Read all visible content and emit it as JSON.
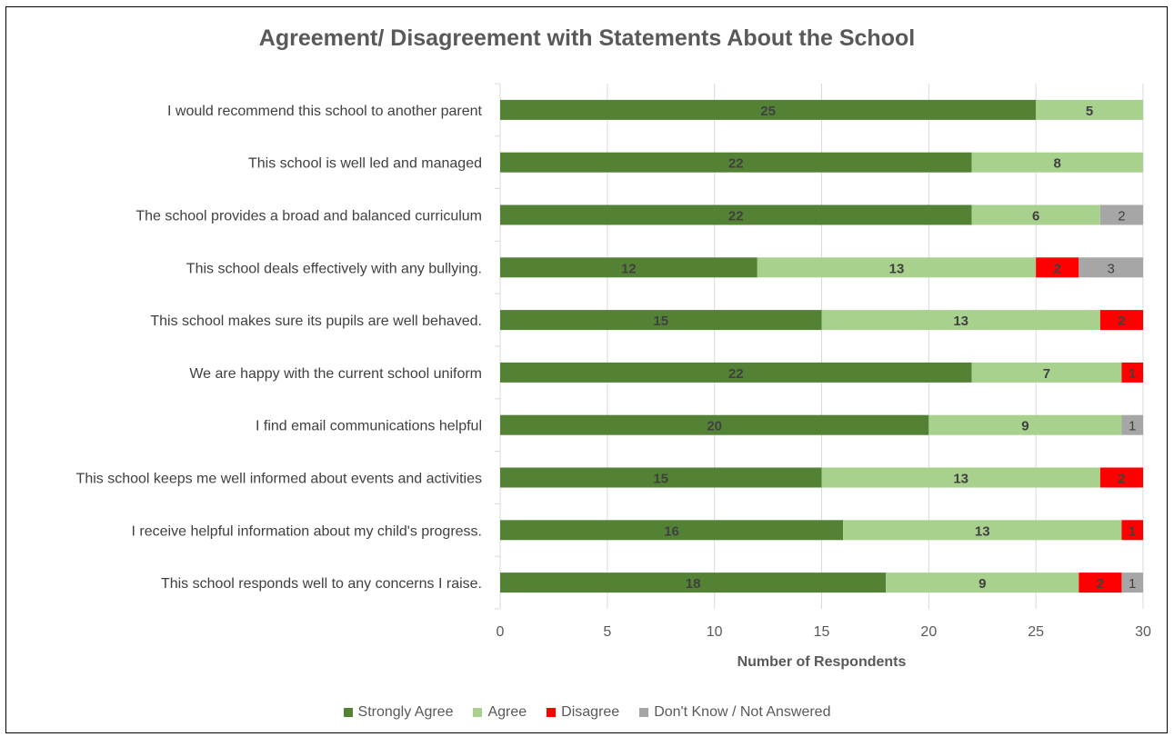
{
  "chart_data": {
    "type": "bar",
    "orientation": "horizontal",
    "stacked": true,
    "title": "Agreement/ Disagreement with Statements About the School",
    "xlabel": "Number of Respondents",
    "ylabel": "",
    "xlim": [
      0,
      30
    ],
    "x_ticks": [
      "0",
      "5",
      "10",
      "15",
      "20",
      "25",
      "30"
    ],
    "grid": true,
    "legend_position": "bottom",
    "categories": [
      "I would recommend this school to another parent",
      "This school is well led and managed",
      "The school provides a broad and balanced curriculum",
      "This school deals effectively with any bullying.",
      "This school makes sure its pupils are well behaved.",
      "We are happy with the current school uniform",
      "I find email communications helpful",
      "This school keeps me well informed about events and activities",
      "I receive helpful information about my child's progress.",
      "This school responds well to any concerns I raise."
    ],
    "series": [
      {
        "name": "Strongly Agree",
        "color": "#548235",
        "values": [
          25,
          22,
          22,
          12,
          15,
          22,
          20,
          15,
          16,
          18
        ]
      },
      {
        "name": "Agree",
        "color": "#A9D18E",
        "values": [
          5,
          8,
          6,
          13,
          13,
          7,
          9,
          13,
          13,
          9
        ]
      },
      {
        "name": "Disagree",
        "color": "#FF0000",
        "values": [
          0,
          0,
          0,
          2,
          2,
          1,
          0,
          2,
          1,
          2
        ]
      },
      {
        "name": "Don't Know / Not Answered",
        "color": "#A6A6A6",
        "values": [
          0,
          0,
          2,
          3,
          0,
          0,
          1,
          0,
          0,
          1
        ]
      }
    ]
  }
}
